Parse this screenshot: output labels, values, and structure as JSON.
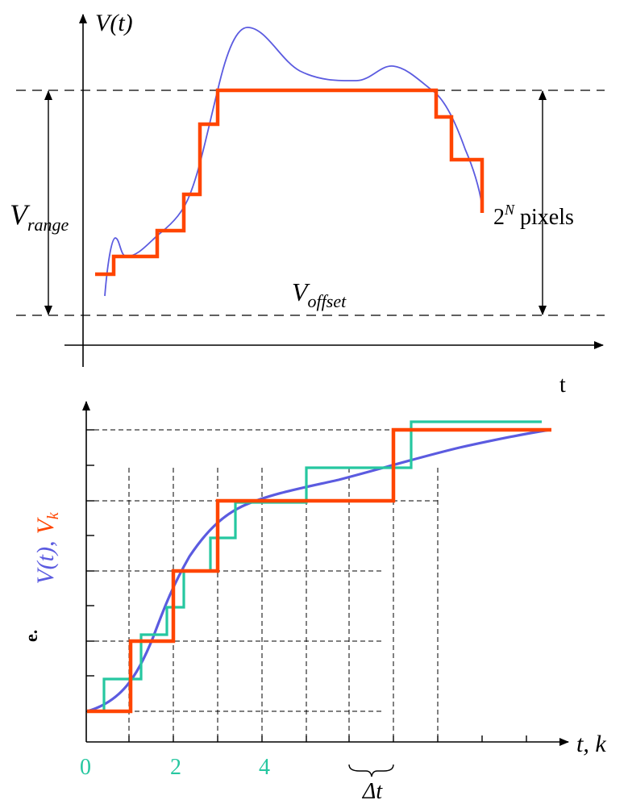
{
  "top_panel": {
    "y_axis_label": "V(t)",
    "x_axis_label": "t",
    "range_label_main": "V",
    "range_label_sub": "range",
    "offset_label_main": "V",
    "offset_label_sub": "offset",
    "pixels_base": "2",
    "pixels_exp": "N",
    "pixels_word": " pixels"
  },
  "bottom_panel": {
    "y_axis_label_blue": "V(t),",
    "y_axis_label_red_main": "V",
    "y_axis_label_red_sub": "k",
    "x_axis_label": "t, k",
    "tick_labels": [
      "0",
      "2",
      "4"
    ],
    "delta_label": "Δt",
    "margin_fragment": "e."
  },
  "colors": {
    "analog_signal": "#5b5be0",
    "quantized_signal": "#ff4500",
    "resampled_signal": "#26c7a0",
    "axes": "#000000"
  }
}
